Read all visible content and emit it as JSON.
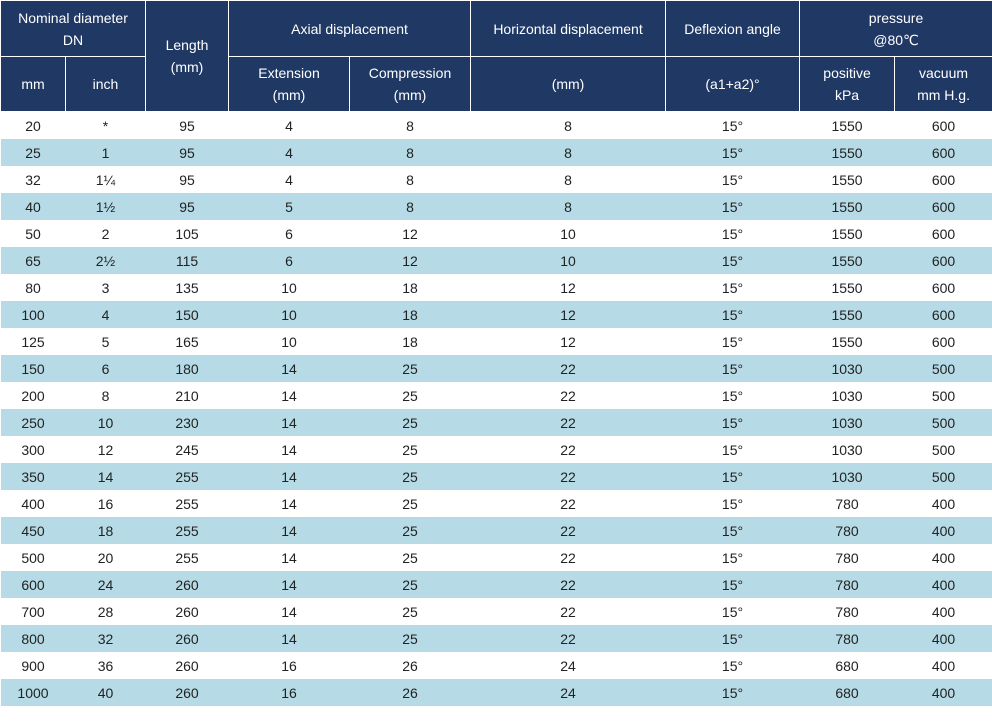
{
  "header": {
    "nominal_diameter": [
      "Nominal diameter",
      "DN"
    ],
    "length": [
      "Length",
      "(mm)"
    ],
    "axial_displacement": "Axial displacement",
    "horizontal_displacement": "Horizontal displacement",
    "deflexion_angle": "Deflexion angle",
    "pressure": [
      "pressure",
      "@80℃"
    ],
    "mm": "mm",
    "inch": "inch",
    "extension": [
      "Extension",
      "(mm)"
    ],
    "compression": [
      "Compression",
      "(mm)"
    ],
    "horizontal_unit": "(mm)",
    "angle_formula": "(a1+a2)°",
    "positive": [
      "positive",
      "kPa"
    ],
    "vacuum": [
      "vacuum",
      "mm H.g."
    ]
  },
  "rows": [
    [
      "20",
      "*",
      "95",
      "4",
      "8",
      "8",
      "15°",
      "1550",
      "600"
    ],
    [
      "25",
      "1",
      "95",
      "4",
      "8",
      "8",
      "15°",
      "1550",
      "600"
    ],
    [
      "32",
      "1¼",
      "95",
      "4",
      "8",
      "8",
      "15°",
      "1550",
      "600"
    ],
    [
      "40",
      "1½",
      "95",
      "5",
      "8",
      "8",
      "15°",
      "1550",
      "600"
    ],
    [
      "50",
      "2",
      "105",
      "6",
      "12",
      "10",
      "15°",
      "1550",
      "600"
    ],
    [
      "65",
      "2½",
      "115",
      "6",
      "12",
      "10",
      "15°",
      "1550",
      "600"
    ],
    [
      "80",
      "3",
      "135",
      "10",
      "18",
      "12",
      "15°",
      "1550",
      "600"
    ],
    [
      "100",
      "4",
      "150",
      "10",
      "18",
      "12",
      "15°",
      "1550",
      "600"
    ],
    [
      "125",
      "5",
      "165",
      "10",
      "18",
      "12",
      "15°",
      "1550",
      "600"
    ],
    [
      "150",
      "6",
      "180",
      "14",
      "25",
      "22",
      "15°",
      "1030",
      "500"
    ],
    [
      "200",
      "8",
      "210",
      "14",
      "25",
      "22",
      "15°",
      "1030",
      "500"
    ],
    [
      "250",
      "10",
      "230",
      "14",
      "25",
      "22",
      "15°",
      "1030",
      "500"
    ],
    [
      "300",
      "12",
      "245",
      "14",
      "25",
      "22",
      "15°",
      "1030",
      "500"
    ],
    [
      "350",
      "14",
      "255",
      "14",
      "25",
      "22",
      "15°",
      "1030",
      "500"
    ],
    [
      "400",
      "16",
      "255",
      "14",
      "25",
      "22",
      "15°",
      "780",
      "400"
    ],
    [
      "450",
      "18",
      "255",
      "14",
      "25",
      "22",
      "15°",
      "780",
      "400"
    ],
    [
      "500",
      "20",
      "255",
      "14",
      "25",
      "22",
      "15°",
      "780",
      "400"
    ],
    [
      "600",
      "24",
      "260",
      "14",
      "25",
      "22",
      "15°",
      "780",
      "400"
    ],
    [
      "700",
      "28",
      "260",
      "14",
      "25",
      "22",
      "15°",
      "780",
      "400"
    ],
    [
      "800",
      "32",
      "260",
      "14",
      "25",
      "22",
      "15°",
      "780",
      "400"
    ],
    [
      "900",
      "36",
      "260",
      "16",
      "26",
      "24",
      "15°",
      "680",
      "400"
    ],
    [
      "1000",
      "40",
      "260",
      "16",
      "26",
      "24",
      "15°",
      "680",
      "400"
    ]
  ]
}
